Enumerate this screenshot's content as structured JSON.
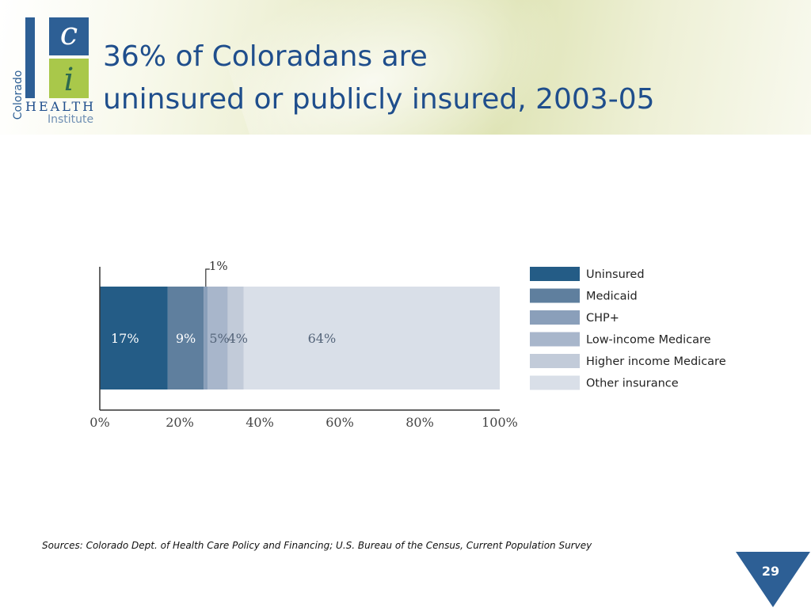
{
  "slide": {
    "title_line1": "36% of Coloradans are",
    "title_line2": "uninsured or publicly insured, 2003-05",
    "sources": "Sources: Colorado Dept. of Health Care Policy and Financing; U.S. Bureau of the Census, Current Population Survey",
    "page_number": "29"
  },
  "logo": {
    "vertical_word": "Colorado",
    "letter_top": "c",
    "letter_bottom": "i",
    "word_health": "HEALTH",
    "word_institute": "Institute",
    "colors": {
      "top_block": "#2d5f95",
      "left_bar": "#2d5f95",
      "bottom_block": "#a9c84a"
    }
  },
  "chart_data": {
    "type": "bar",
    "orientation": "horizontal",
    "stacked": true,
    "xlim": [
      0,
      100
    ],
    "x_ticks": [
      "0%",
      "20%",
      "40%",
      "60%",
      "80%",
      "100%"
    ],
    "series": [
      {
        "name": "Uninsured",
        "value": 17,
        "label": "17%",
        "color": "#245c86"
      },
      {
        "name": "Medicaid",
        "value": 9,
        "label": "9%",
        "color": "#5f7f9e"
      },
      {
        "name": "CHP+",
        "value": 1,
        "label": "1%",
        "color": "#8a9fba"
      },
      {
        "name": "Low-income Medicare",
        "value": 5,
        "label": "5%",
        "color": "#a8b6cb"
      },
      {
        "name": "Higher income Medicare",
        "value": 4,
        "label": "4%",
        "color": "#c2cbd9"
      },
      {
        "name": "Other insurance",
        "value": 64,
        "label": "64%",
        "color": "#d9dfe8"
      }
    ],
    "legend_position": "right",
    "grid": false
  },
  "colors": {
    "title": "#1f4e8c",
    "page_marker": "#2d5f95"
  }
}
